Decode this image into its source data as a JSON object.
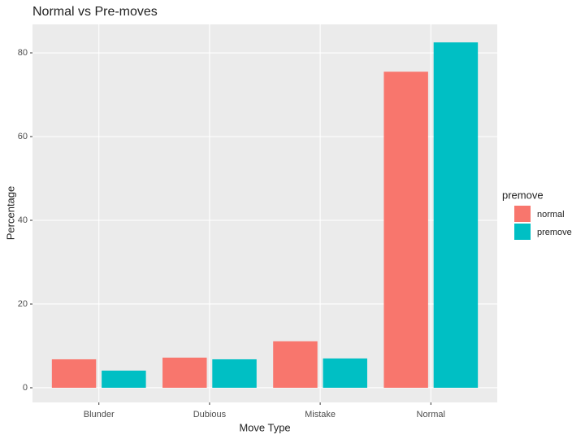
{
  "chart_data": {
    "type": "bar",
    "title": "Normal vs Pre-moves",
    "x_label": "Move Type",
    "y_label": "Percentage",
    "categories": [
      "Blunder",
      "Dubious",
      "Mistake",
      "Normal"
    ],
    "series": [
      {
        "name": "normal",
        "color": "#F8766D",
        "values": [
          6.8,
          7.2,
          11.1,
          75.5
        ]
      },
      {
        "name": "premove",
        "color": "#00BFC4",
        "values": [
          4.1,
          6.8,
          7.0,
          82.5
        ]
      }
    ],
    "legend_title": "premove",
    "ylim": [
      -3.5,
      86.8
    ],
    "yticks": [
      0,
      20,
      40,
      60,
      80
    ],
    "grid": true,
    "legend": "right"
  }
}
